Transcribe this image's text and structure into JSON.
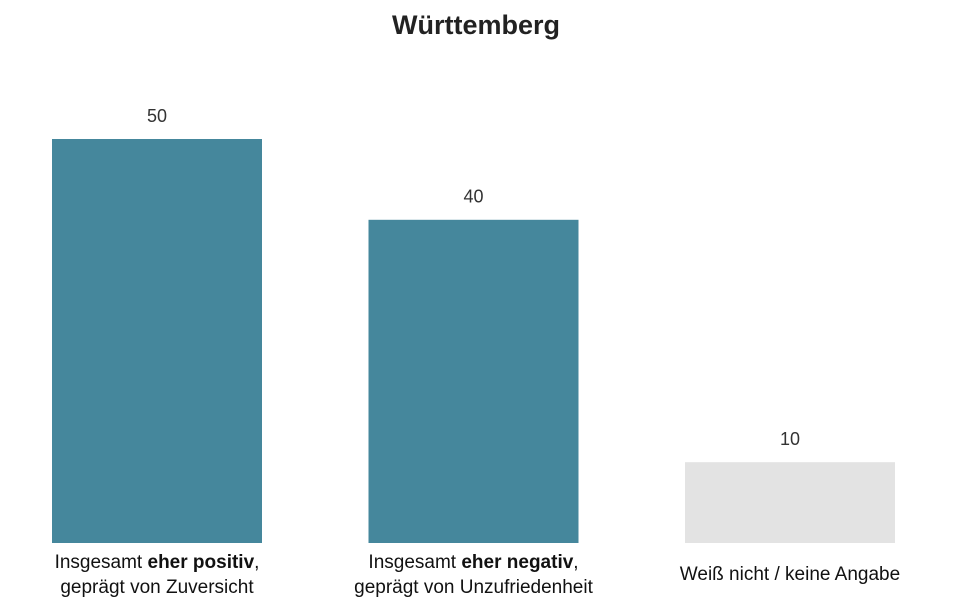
{
  "chart_data": {
    "type": "bar",
    "title": "Württemberg",
    "categories": [
      "Insgesamt eher positiv, geprägt von Zuversicht",
      "Insgesamt eher negativ, geprägt von Unzufriedenheit",
      "Weiß nicht / keine Angabe"
    ],
    "emphasis": [
      "eher positiv",
      "eher negativ",
      null
    ],
    "values": [
      50,
      40,
      10
    ],
    "colors": [
      "#45879c",
      "#45879c",
      "#e3e3e3"
    ],
    "ylim": [
      0,
      50
    ]
  }
}
